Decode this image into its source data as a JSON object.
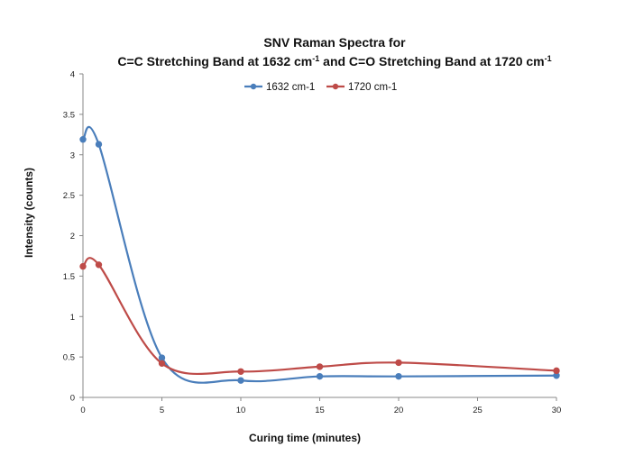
{
  "chart_data": {
    "type": "line",
    "title_line1": "SNV Raman Spectra for",
    "title_line2": {
      "part1": "C=C Stretching Band at 1632 cm",
      "sup1": "-1",
      "part2": " and C=O Stretching Band at 1720 cm",
      "sup2": "-1"
    },
    "xlabel": "Curing time (minutes)",
    "ylabel": "Intensity (counts)",
    "xlim": [
      0,
      30
    ],
    "ylim": [
      0,
      4
    ],
    "x_ticks": [
      "0",
      "5",
      "10",
      "15",
      "20",
      "25",
      "30"
    ],
    "y_ticks": [
      "0",
      "0.5",
      "1",
      "1.5",
      "2",
      "2.5",
      "3",
      "3.5",
      "4"
    ],
    "grid": false,
    "legend_position": "top-center",
    "series": [
      {
        "name": "1632 cm-1",
        "color": "#4a7ebb",
        "marker": "circle",
        "smooth": true,
        "x": [
          0,
          1,
          5,
          10,
          15,
          20,
          30
        ],
        "y": [
          3.19,
          3.13,
          0.49,
          0.21,
          0.26,
          0.26,
          0.27
        ]
      },
      {
        "name": "1720 cm-1",
        "color": "#be4b48",
        "marker": "circle",
        "smooth": true,
        "x": [
          0,
          1,
          5,
          10,
          15,
          20,
          30
        ],
        "y": [
          1.62,
          1.64,
          0.42,
          0.32,
          0.38,
          0.43,
          0.33
        ]
      }
    ]
  }
}
